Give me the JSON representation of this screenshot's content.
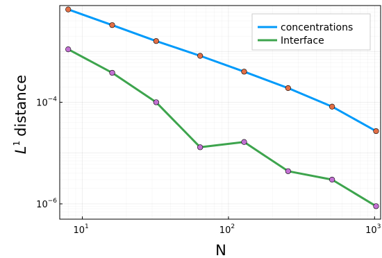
{
  "chart_data": {
    "type": "line",
    "title": "",
    "xlabel": "N",
    "ylabel_main": "distance",
    "ylabel_prefix": "L",
    "ylabel_sup": "1",
    "xscale": "log",
    "yscale": "log",
    "xlim": [
      7,
      1100
    ],
    "ylim": [
      5e-07,
      0.008
    ],
    "grid": true,
    "minor_grid": true,
    "legend_position": "top-right",
    "x_ticks": [
      {
        "value": 10,
        "base": "10",
        "exp": "1"
      },
      {
        "value": 100,
        "base": "10",
        "exp": "2"
      },
      {
        "value": 1000,
        "base": "10",
        "exp": "3"
      }
    ],
    "y_ticks": [
      {
        "value": 0.0001,
        "base": "10",
        "exp": "−4"
      },
      {
        "value": 1e-06,
        "base": "10",
        "exp": "−6"
      }
    ],
    "x": [
      8,
      16,
      32,
      64,
      128,
      256,
      512,
      1024
    ],
    "series": [
      {
        "name": "concentrations",
        "color": "#009AFA",
        "marker_color": "#E26F46",
        "values": [
          0.0067,
          0.0033,
          0.0016,
          0.00082,
          0.0004,
          0.00019,
          8.2e-05,
          2.7e-05
        ]
      },
      {
        "name": "Interface",
        "color": "#3DA44D",
        "marker_color": "#C271D2",
        "values": [
          0.0011,
          0.00038,
          0.0001,
          1.3e-05,
          1.65e-05,
          4.4e-06,
          3e-06,
          9e-07
        ]
      }
    ]
  }
}
